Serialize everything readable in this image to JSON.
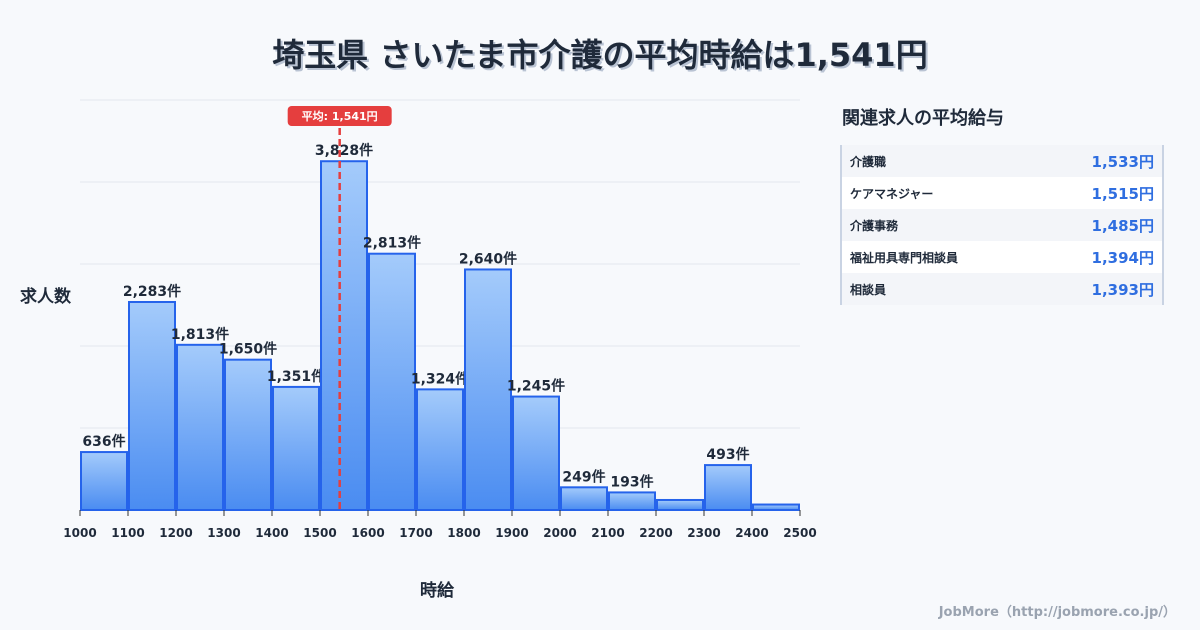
{
  "title": "埼玉県 さいたま市介護の平均時給は1,541円",
  "side_title": "関連求人の平均給与",
  "related": [
    {
      "label": "介護職",
      "value": "1,533円"
    },
    {
      "label": "ケアマネジャー",
      "value": "1,515円"
    },
    {
      "label": "介護事務",
      "value": "1,485円"
    },
    {
      "label": "福祉用具専門相談員",
      "value": "1,394円"
    },
    {
      "label": "相談員",
      "value": "1,393円"
    }
  ],
  "footer": "JobMore（http://jobmore.co.jp/）",
  "chart_data": {
    "type": "bar",
    "xlabel": "時給",
    "ylabel": "求人数",
    "x_ticks": [
      "1000",
      "1100",
      "1200",
      "1300",
      "1400",
      "1500",
      "1600",
      "1700",
      "1800",
      "1900",
      "2000",
      "2100",
      "2200",
      "2300",
      "2400",
      "2500"
    ],
    "bins": [
      1000,
      1100,
      1200,
      1300,
      1400,
      1500,
      1600,
      1700,
      1800,
      1900,
      2000,
      2100,
      2200,
      2300,
      2400
    ],
    "values": [
      636,
      2283,
      1813,
      1650,
      1351,
      3828,
      2813,
      1324,
      2640,
      1245,
      249,
      193,
      110,
      493,
      60
    ],
    "labels": [
      "636件",
      "2,283件",
      "1,813件",
      "1,650件",
      "1,351件",
      "3,828件",
      "2,813件",
      "1,324件",
      "2,640件",
      "1,245件",
      "249件",
      "193件",
      "",
      "493件",
      ""
    ],
    "ylim": [
      0,
      4500
    ],
    "grid": true,
    "average": {
      "value": 1541,
      "label": "平均: 1,541円"
    },
    "colors": {
      "bar_top": "#a4cbfb",
      "bar_bottom": "#4a8cf1",
      "bar_edge": "#2563eb",
      "avg": "#e53e3e"
    }
  }
}
